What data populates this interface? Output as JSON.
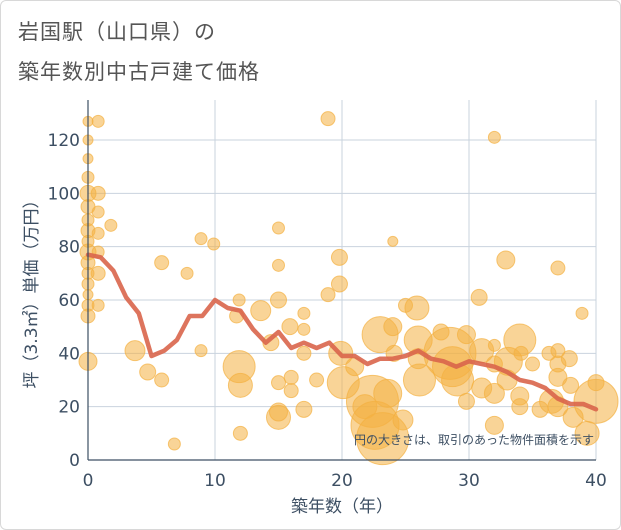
{
  "header": {
    "title_line1": "岩国駅（山口県）の",
    "title_line2": "築年数別中古戸建て価格"
  },
  "colors": {
    "bubble": "#f4b042",
    "line": "#d9654b",
    "grid": "#c9d3de",
    "axis_text": "#3d4f63"
  },
  "chart_data": {
    "type": "scatter",
    "xlabel": "築年数（年）",
    "ylabel": "坪（3.3㎡）単価（万円）",
    "xlim": [
      0,
      40
    ],
    "ylim": [
      0,
      135
    ],
    "xticks": [
      0,
      10,
      20,
      30,
      40
    ],
    "yticks": [
      0,
      20,
      40,
      60,
      80,
      100,
      120
    ],
    "annotation": "円の大きさは、取引のあった物件面積を示す",
    "grid": true,
    "bubbles": [
      {
        "x": 0,
        "y": 127,
        "s": 5
      },
      {
        "x": 0,
        "y": 120,
        "s": 5
      },
      {
        "x": 0,
        "y": 113,
        "s": 5
      },
      {
        "x": 0,
        "y": 106,
        "s": 6
      },
      {
        "x": 0,
        "y": 100,
        "s": 8
      },
      {
        "x": 0,
        "y": 95,
        "s": 7
      },
      {
        "x": 0,
        "y": 90,
        "s": 6
      },
      {
        "x": 0,
        "y": 86,
        "s": 7
      },
      {
        "x": 0,
        "y": 82,
        "s": 6
      },
      {
        "x": 0,
        "y": 78,
        "s": 8
      },
      {
        "x": 0,
        "y": 74,
        "s": 7
      },
      {
        "x": 0,
        "y": 70,
        "s": 6
      },
      {
        "x": 0,
        "y": 66,
        "s": 6
      },
      {
        "x": 0,
        "y": 62,
        "s": 5
      },
      {
        "x": 0,
        "y": 58,
        "s": 6
      },
      {
        "x": 0,
        "y": 54,
        "s": 7
      },
      {
        "x": 0,
        "y": 37,
        "s": 9
      },
      {
        "x": 0.8,
        "y": 127,
        "s": 6
      },
      {
        "x": 0.8,
        "y": 100,
        "s": 7
      },
      {
        "x": 0.8,
        "y": 93,
        "s": 6
      },
      {
        "x": 0.8,
        "y": 85,
        "s": 6
      },
      {
        "x": 0.8,
        "y": 78,
        "s": 6
      },
      {
        "x": 0.8,
        "y": 70,
        "s": 7
      },
      {
        "x": 0.8,
        "y": 58,
        "s": 6
      },
      {
        "x": 1.8,
        "y": 88,
        "s": 6
      },
      {
        "x": 3.7,
        "y": 41,
        "s": 10
      },
      {
        "x": 4.7,
        "y": 33,
        "s": 8
      },
      {
        "x": 5.8,
        "y": 74,
        "s": 7
      },
      {
        "x": 5.8,
        "y": 30,
        "s": 7
      },
      {
        "x": 6.8,
        "y": 6,
        "s": 6
      },
      {
        "x": 7.8,
        "y": 70,
        "s": 6
      },
      {
        "x": 8.9,
        "y": 83,
        "s": 6
      },
      {
        "x": 8.9,
        "y": 41,
        "s": 6
      },
      {
        "x": 9.9,
        "y": 81,
        "s": 6
      },
      {
        "x": 11.9,
        "y": 60,
        "s": 6
      },
      {
        "x": 11.7,
        "y": 54,
        "s": 7
      },
      {
        "x": 11.9,
        "y": 35,
        "s": 16
      },
      {
        "x": 12.0,
        "y": 28,
        "s": 12
      },
      {
        "x": 12.0,
        "y": 10,
        "s": 7
      },
      {
        "x": 13.6,
        "y": 56,
        "s": 10
      },
      {
        "x": 14.4,
        "y": 44,
        "s": 8
      },
      {
        "x": 15.0,
        "y": 87,
        "s": 6
      },
      {
        "x": 15.0,
        "y": 73,
        "s": 6
      },
      {
        "x": 15.0,
        "y": 60,
        "s": 8
      },
      {
        "x": 15.0,
        "y": 29,
        "s": 7
      },
      {
        "x": 15.0,
        "y": 18,
        "s": 9
      },
      {
        "x": 15.0,
        "y": 16,
        "s": 12
      },
      {
        "x": 15.9,
        "y": 50,
        "s": 8
      },
      {
        "x": 16.0,
        "y": 31,
        "s": 7
      },
      {
        "x": 16.0,
        "y": 26,
        "s": 7
      },
      {
        "x": 17.0,
        "y": 55,
        "s": 6
      },
      {
        "x": 17.0,
        "y": 49,
        "s": 6
      },
      {
        "x": 17.0,
        "y": 40,
        "s": 7
      },
      {
        "x": 17.0,
        "y": 19,
        "s": 8
      },
      {
        "x": 18.9,
        "y": 128,
        "s": 7
      },
      {
        "x": 18.9,
        "y": 62,
        "s": 7
      },
      {
        "x": 18.0,
        "y": 30,
        "s": 7
      },
      {
        "x": 19.8,
        "y": 76,
        "s": 8
      },
      {
        "x": 19.8,
        "y": 66,
        "s": 8
      },
      {
        "x": 19.9,
        "y": 40,
        "s": 12
      },
      {
        "x": 20.1,
        "y": 29,
        "s": 16
      },
      {
        "x": 21.0,
        "y": 35,
        "s": 9
      },
      {
        "x": 21.8,
        "y": 20,
        "s": 12
      },
      {
        "x": 22.4,
        "y": 22,
        "s": 26
      },
      {
        "x": 22.6,
        "y": 13,
        "s": 24
      },
      {
        "x": 23.2,
        "y": 8,
        "s": 26
      },
      {
        "x": 23.0,
        "y": 47,
        "s": 18
      },
      {
        "x": 23.6,
        "y": 25,
        "s": 14
      },
      {
        "x": 24.0,
        "y": 82,
        "s": 5
      },
      {
        "x": 24.0,
        "y": 50,
        "s": 9
      },
      {
        "x": 24.1,
        "y": 40,
        "s": 8
      },
      {
        "x": 24.8,
        "y": 15,
        "s": 10
      },
      {
        "x": 25.0,
        "y": 58,
        "s": 7
      },
      {
        "x": 25.9,
        "y": 57,
        "s": 12
      },
      {
        "x": 26.0,
        "y": 45,
        "s": 14
      },
      {
        "x": 26.0,
        "y": 38,
        "s": 10
      },
      {
        "x": 26.1,
        "y": 30,
        "s": 16
      },
      {
        "x": 27.8,
        "y": 48,
        "s": 8
      },
      {
        "x": 28.5,
        "y": 40,
        "s": 26
      },
      {
        "x": 28.7,
        "y": 35,
        "s": 20
      },
      {
        "x": 29.1,
        "y": 30,
        "s": 16
      },
      {
        "x": 29.8,
        "y": 47,
        "s": 9
      },
      {
        "x": 29.8,
        "y": 22,
        "s": 8
      },
      {
        "x": 30.8,
        "y": 61,
        "s": 8
      },
      {
        "x": 31.0,
        "y": 41,
        "s": 12
      },
      {
        "x": 31.0,
        "y": 27,
        "s": 10
      },
      {
        "x": 32.0,
        "y": 121,
        "s": 6
      },
      {
        "x": 32.0,
        "y": 43,
        "s": 6
      },
      {
        "x": 32.0,
        "y": 36,
        "s": 8
      },
      {
        "x": 32.0,
        "y": 25,
        "s": 10
      },
      {
        "x": 32.0,
        "y": 13,
        "s": 9
      },
      {
        "x": 32.9,
        "y": 75,
        "s": 9
      },
      {
        "x": 33.1,
        "y": 37,
        "s": 14
      },
      {
        "x": 33.0,
        "y": 30,
        "s": 10
      },
      {
        "x": 34.0,
        "y": 45,
        "s": 16
      },
      {
        "x": 34.1,
        "y": 40,
        "s": 7
      },
      {
        "x": 34.0,
        "y": 24,
        "s": 9
      },
      {
        "x": 34.0,
        "y": 20,
        "s": 8
      },
      {
        "x": 35.0,
        "y": 36,
        "s": 7
      },
      {
        "x": 35.6,
        "y": 19,
        "s": 8
      },
      {
        "x": 36.3,
        "y": 40,
        "s": 7
      },
      {
        "x": 36.5,
        "y": 22,
        "s": 12
      },
      {
        "x": 37.0,
        "y": 72,
        "s": 7
      },
      {
        "x": 37.0,
        "y": 41,
        "s": 7
      },
      {
        "x": 37.0,
        "y": 36,
        "s": 8
      },
      {
        "x": 37.0,
        "y": 31,
        "s": 9
      },
      {
        "x": 37.0,
        "y": 20,
        "s": 10
      },
      {
        "x": 37.9,
        "y": 38,
        "s": 8
      },
      {
        "x": 38.0,
        "y": 28,
        "s": 8
      },
      {
        "x": 38.2,
        "y": 16,
        "s": 10
      },
      {
        "x": 38.9,
        "y": 55,
        "s": 6
      },
      {
        "x": 39.3,
        "y": 10,
        "s": 12
      },
      {
        "x": 40.0,
        "y": 29,
        "s": 8
      },
      {
        "x": 40.0,
        "y": 22,
        "s": 22
      }
    ],
    "series": [
      {
        "x": [
          0,
          1,
          2,
          3,
          4,
          5,
          6,
          7,
          8,
          9,
          10,
          11,
          12,
          13,
          14,
          15,
          16,
          17,
          18,
          19,
          20,
          21,
          22,
          23,
          24,
          25,
          26,
          27,
          28,
          29,
          30,
          31,
          32,
          33,
          34,
          35,
          36,
          37,
          38,
          39,
          40
        ],
        "values": [
          77,
          76,
          71,
          61,
          55,
          39,
          41,
          45,
          54,
          54,
          60,
          57,
          56,
          49,
          44,
          48,
          42,
          44,
          42,
          44,
          39,
          39,
          36,
          38,
          38,
          39,
          41,
          38,
          37,
          35,
          37,
          36,
          35,
          33,
          30,
          29,
          27,
          23,
          21,
          21,
          19
        ]
      }
    ]
  }
}
